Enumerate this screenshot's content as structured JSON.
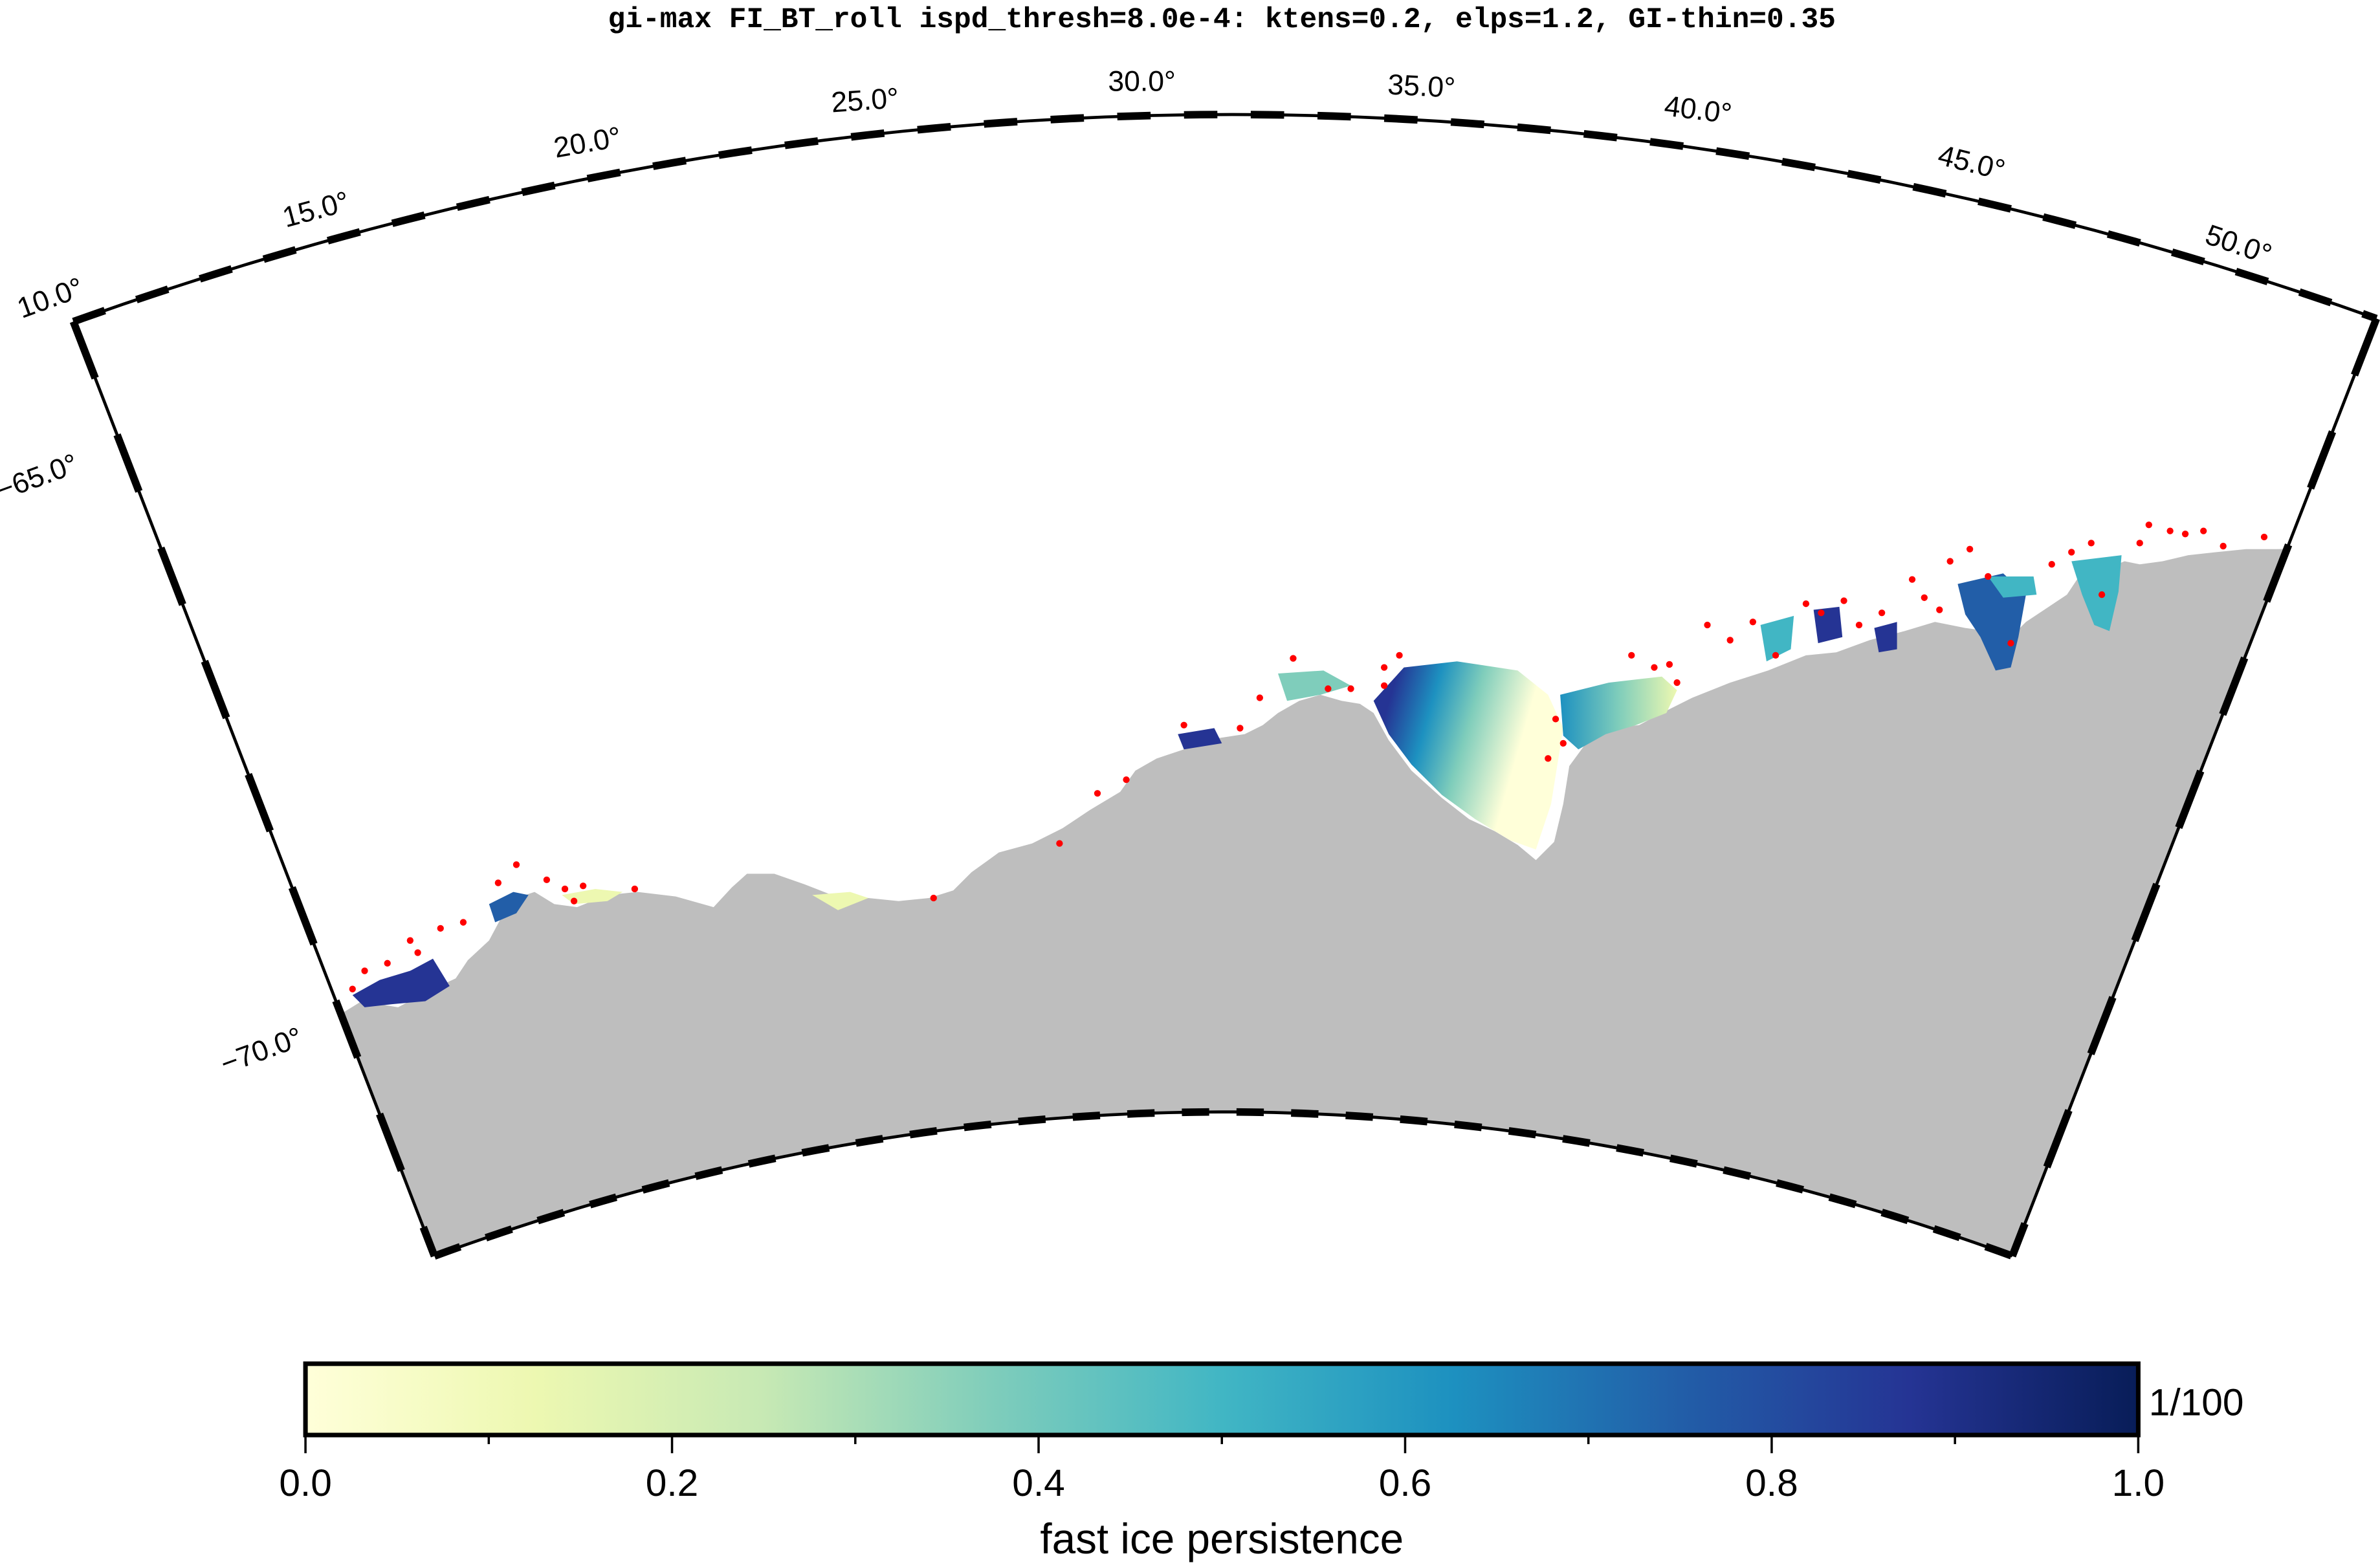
{
  "map": {
    "title": "gi-max FI_BT_roll ispd_thresh=8.0e-4: ktens=0.2, elps=1.2, GI-thin=0.35",
    "longitude_labels": [
      "10.0°",
      "15.0°",
      "20.0°",
      "25.0°",
      "30.0°",
      "35.0°",
      "40.0°",
      "45.0°",
      "50.0°"
    ],
    "latitude_labels": [
      "−65.0°",
      "−70.0°"
    ],
    "land_color": "#bebebe",
    "grounded_iceberg_marker_color": "#ff0000"
  },
  "colorbar": {
    "label": "fast ice persistence",
    "unit_label": "1/100",
    "tick_labels": [
      "0.0",
      "0.2",
      "0.4",
      "0.6",
      "0.8",
      "1.0"
    ],
    "range": [
      0.0,
      1.0
    ],
    "colormap": "YlGnBu",
    "colors": [
      "#ffffd9",
      "#edf8b1",
      "#c7e9b4",
      "#7fcdbb",
      "#41b6c4",
      "#1d91c0",
      "#225ea8",
      "#253494",
      "#081d58"
    ]
  }
}
